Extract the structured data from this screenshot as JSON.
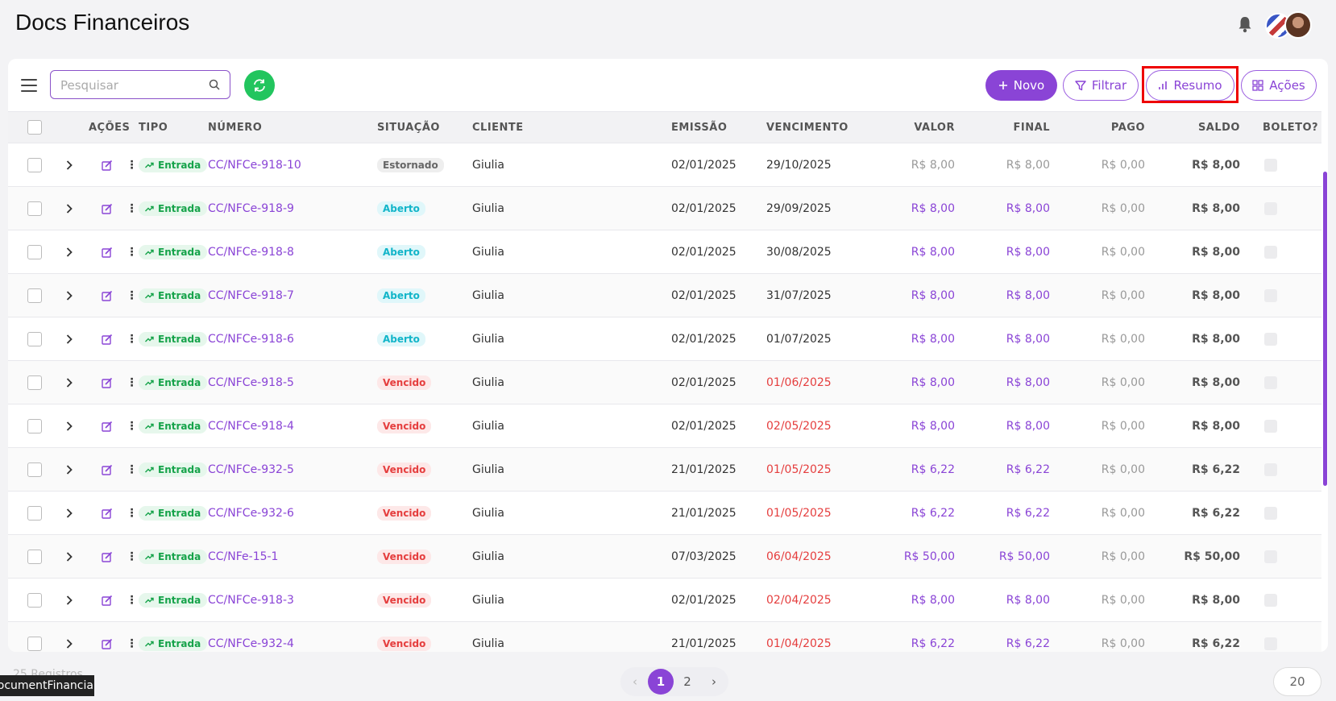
{
  "header": {
    "title": "Docs Financeiros"
  },
  "toolbar": {
    "search_placeholder": "Pesquisar",
    "novo_label": "Novo",
    "filtrar_label": "Filtrar",
    "resumo_label": "Resumo",
    "acoes_label": "Ações"
  },
  "table": {
    "columns": [
      "AÇÕES",
      "TIPO",
      "NÚMERO",
      "SITUAÇÃO",
      "CLIENTE",
      "EMISSÃO",
      "VENCIMENTO",
      "VALOR",
      "FINAL",
      "PAGO",
      "SALDO",
      "BOLETO?"
    ],
    "rows": [
      {
        "tipo": "Entrada",
        "numero": "CC/NFCe-918-10",
        "situacao": "Estornado",
        "cliente": "Giulia",
        "emissao": "02/01/2025",
        "vencimento": "29/10/2025",
        "valor": "R$ 8,00",
        "final": "R$ 8,00",
        "pago": "R$ 0,00",
        "saldo": "R$ 8,00"
      },
      {
        "tipo": "Entrada",
        "numero": "CC/NFCe-918-9",
        "situacao": "Aberto",
        "cliente": "Giulia",
        "emissao": "02/01/2025",
        "vencimento": "29/09/2025",
        "valor": "R$ 8,00",
        "final": "R$ 8,00",
        "pago": "R$ 0,00",
        "saldo": "R$ 8,00"
      },
      {
        "tipo": "Entrada",
        "numero": "CC/NFCe-918-8",
        "situacao": "Aberto",
        "cliente": "Giulia",
        "emissao": "02/01/2025",
        "vencimento": "30/08/2025",
        "valor": "R$ 8,00",
        "final": "R$ 8,00",
        "pago": "R$ 0,00",
        "saldo": "R$ 8,00"
      },
      {
        "tipo": "Entrada",
        "numero": "CC/NFCe-918-7",
        "situacao": "Aberto",
        "cliente": "Giulia",
        "emissao": "02/01/2025",
        "vencimento": "31/07/2025",
        "valor": "R$ 8,00",
        "final": "R$ 8,00",
        "pago": "R$ 0,00",
        "saldo": "R$ 8,00"
      },
      {
        "tipo": "Entrada",
        "numero": "CC/NFCe-918-6",
        "situacao": "Aberto",
        "cliente": "Giulia",
        "emissao": "02/01/2025",
        "vencimento": "01/07/2025",
        "valor": "R$ 8,00",
        "final": "R$ 8,00",
        "pago": "R$ 0,00",
        "saldo": "R$ 8,00"
      },
      {
        "tipo": "Entrada",
        "numero": "CC/NFCe-918-5",
        "situacao": "Vencido",
        "cliente": "Giulia",
        "emissao": "02/01/2025",
        "vencimento": "01/06/2025",
        "valor": "R$ 8,00",
        "final": "R$ 8,00",
        "pago": "R$ 0,00",
        "saldo": "R$ 8,00"
      },
      {
        "tipo": "Entrada",
        "numero": "CC/NFCe-918-4",
        "situacao": "Vencido",
        "cliente": "Giulia",
        "emissao": "02/01/2025",
        "vencimento": "02/05/2025",
        "valor": "R$ 8,00",
        "final": "R$ 8,00",
        "pago": "R$ 0,00",
        "saldo": "R$ 8,00"
      },
      {
        "tipo": "Entrada",
        "numero": "CC/NFCe-932-5",
        "situacao": "Vencido",
        "cliente": "Giulia",
        "emissao": "21/01/2025",
        "vencimento": "01/05/2025",
        "valor": "R$ 6,22",
        "final": "R$ 6,22",
        "pago": "R$ 0,00",
        "saldo": "R$ 6,22"
      },
      {
        "tipo": "Entrada",
        "numero": "CC/NFCe-932-6",
        "situacao": "Vencido",
        "cliente": "Giulia",
        "emissao": "21/01/2025",
        "vencimento": "01/05/2025",
        "valor": "R$ 6,22",
        "final": "R$ 6,22",
        "pago": "R$ 0,00",
        "saldo": "R$ 6,22"
      },
      {
        "tipo": "Entrada",
        "numero": "CC/NFe-15-1",
        "situacao": "Vencido",
        "cliente": "Giulia",
        "emissao": "07/03/2025",
        "vencimento": "06/04/2025",
        "valor": "R$ 50,00",
        "final": "R$ 50,00",
        "pago": "R$ 0,00",
        "saldo": "R$ 50,00"
      },
      {
        "tipo": "Entrada",
        "numero": "CC/NFCe-918-3",
        "situacao": "Vencido",
        "cliente": "Giulia",
        "emissao": "02/01/2025",
        "vencimento": "02/04/2025",
        "valor": "R$ 8,00",
        "final": "R$ 8,00",
        "pago": "R$ 0,00",
        "saldo": "R$ 8,00"
      },
      {
        "tipo": "Entrada",
        "numero": "CC/NFCe-932-4",
        "situacao": "Vencido",
        "cliente": "Giulia",
        "emissao": "21/01/2025",
        "vencimento": "01/04/2025",
        "valor": "R$ 6,22",
        "final": "R$ 6,22",
        "pago": "R$ 0,00",
        "saldo": "R$ 6,22"
      }
    ]
  },
  "footer": {
    "records_text": "25 Registros",
    "pages": [
      "1",
      "2"
    ],
    "current_page": "1",
    "page_size": "20",
    "tooltip": "DocumentFinancial"
  },
  "colors": {
    "accent": "#8a44d6",
    "success": "#22c55e",
    "danger": "#e53e3e",
    "info": "#12b5c9"
  }
}
